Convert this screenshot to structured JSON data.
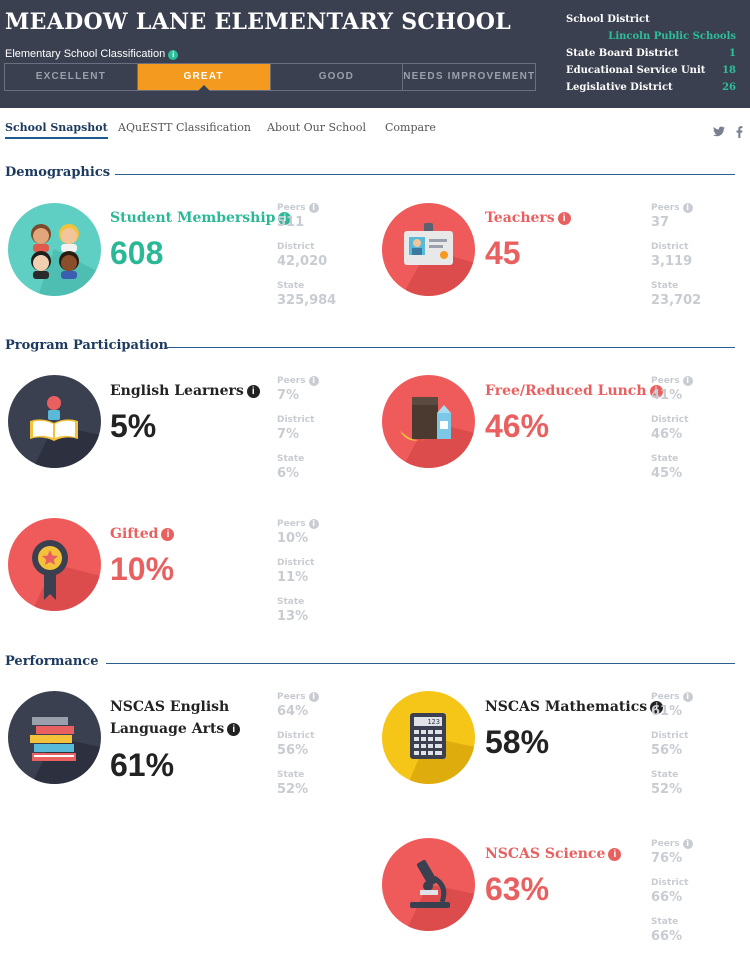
{
  "school": {
    "name": "MEADOW LANE ELEMENTARY SCHOOL"
  },
  "classification": {
    "label": "Elementary School Classification",
    "levels": [
      "EXCELLENT",
      "GREAT",
      "GOOD",
      "NEEDS IMPROVEMENT"
    ],
    "active": "GREAT"
  },
  "district_info": {
    "school_district_label": "School District",
    "school_district_value": "Lincoln Public Schools",
    "rows": [
      {
        "label": "State Board District",
        "value": "1"
      },
      {
        "label": "Educational Service Unit",
        "value": "18"
      },
      {
        "label": "Legislative District",
        "value": "26"
      }
    ]
  },
  "nav": {
    "tabs": [
      "School Snapshot",
      "AQuESTT Classification",
      "About Our School",
      "Compare"
    ],
    "active_tab": "School Snapshot",
    "social": [
      "twitter-icon",
      "facebook-icon"
    ]
  },
  "compare_labels": {
    "peers": "Peers",
    "district": "District",
    "state": "State"
  },
  "sections": {
    "demographics": "Demographics",
    "program": "Program Participation",
    "performance": "Performance"
  },
  "stats": {
    "membership": {
      "label": "Student Membership",
      "value": "608",
      "peers": "511",
      "district": "42,020",
      "state": "325,984",
      "icon": "students-icon",
      "color": "#2bb896"
    },
    "teachers": {
      "label": "Teachers",
      "value": "45",
      "peers": "37",
      "district": "3,119",
      "state": "23,702",
      "icon": "id-badge-icon",
      "color": "#e96060"
    },
    "english_learners": {
      "label": "English Learners",
      "value": "5%",
      "peers": "7%",
      "district": "7%",
      "state": "6%",
      "icon": "book-reader-icon",
      "color": "#222222"
    },
    "lunch": {
      "label": "Free/Reduced Lunch",
      "value": "46%",
      "peers": "41%",
      "district": "46%",
      "state": "45%",
      "icon": "lunch-icon",
      "color": "#e96060"
    },
    "gifted": {
      "label": "Gifted",
      "value": "10%",
      "peers": "10%",
      "district": "11%",
      "state": "13%",
      "icon": "award-ribbon-icon",
      "color": "#e96060"
    },
    "ela": {
      "label_line1": "NSCAS English",
      "label_line2": "Language Arts",
      "value": "61%",
      "peers": "64%",
      "district": "56%",
      "state": "52%",
      "icon": "book-stack-icon",
      "color": "#222222"
    },
    "math": {
      "label": "NSCAS Mathematics",
      "value": "58%",
      "peers": "61%",
      "district": "56%",
      "state": "52%",
      "icon": "calculator-icon",
      "color": "#222222"
    },
    "science": {
      "label": "NSCAS Science",
      "value": "63%",
      "peers": "76%",
      "district": "66%",
      "state": "66%",
      "icon": "microscope-icon",
      "color": "#e96060"
    }
  },
  "calculator_display": "123"
}
